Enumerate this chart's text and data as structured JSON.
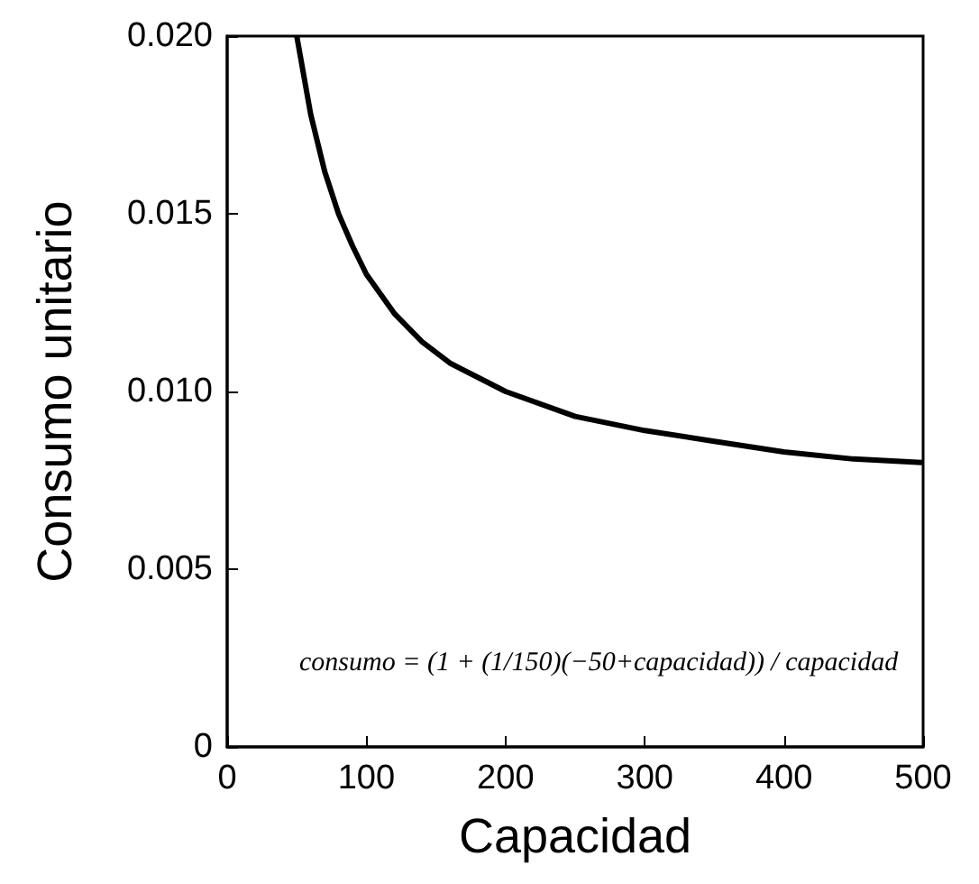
{
  "chart_data": {
    "type": "line",
    "xlabel": "Capacidad",
    "ylabel": "Consumo unitario",
    "x": [
      50,
      60,
      70,
      80,
      90,
      100,
      120,
      140,
      160,
      180,
      200,
      250,
      300,
      350,
      400,
      450,
      500
    ],
    "series": [
      {
        "color": "#000000",
        "values": [
          0.02,
          0.0178,
          0.0162,
          0.015,
          0.0141,
          0.0133,
          0.0122,
          0.0114,
          0.0108,
          0.0104,
          0.01,
          0.0093,
          0.0089,
          0.0086,
          0.0083,
          0.0081,
          0.008
        ]
      }
    ],
    "xlim": [
      0,
      500
    ],
    "xticks": [
      0,
      100,
      200,
      300,
      400,
      500
    ],
    "ylim": [
      0,
      0.02
    ],
    "yticks": [
      0,
      0.005,
      {
        "value": 0.01,
        "label": "0.010"
      },
      0.015,
      {
        "value": 0.02,
        "label": "0.020"
      }
    ],
    "annotations": [
      "consumo = (1 + (1/150)(−50+capacidad)) / capacidad"
    ],
    "grid": false,
    "marker": "none",
    "line_style": "solid"
  }
}
